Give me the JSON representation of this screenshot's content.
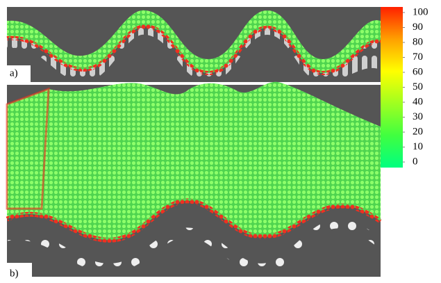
{
  "panels": [
    {
      "label": "a)"
    },
    {
      "label": "b)"
    }
  ],
  "colorbar": {
    "lim": [
      0,
      100
    ],
    "ticks": [
      0,
      10,
      20,
      30,
      40,
      50,
      60,
      70,
      80,
      90,
      100
    ],
    "colors": [
      "#00ff80",
      "#40ff40",
      "#a0ff20",
      "#ffff00",
      "#ffa000",
      "#ff2000"
    ]
  }
}
